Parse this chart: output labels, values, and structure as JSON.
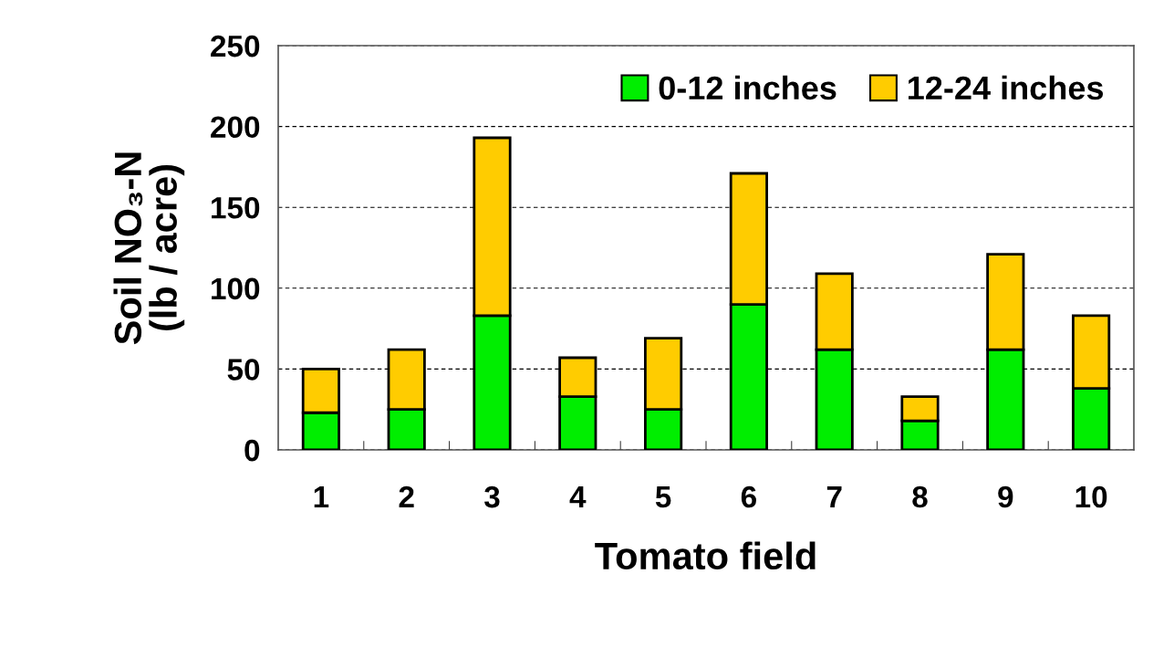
{
  "chart_data": {
    "type": "bar",
    "stacked": true,
    "xlabel": "Tomato field",
    "ylabel": "Soil NO₃-N\n(lb / acre)",
    "categories": [
      "1",
      "2",
      "3",
      "4",
      "5",
      "6",
      "7",
      "8",
      "9",
      "10"
    ],
    "series": [
      {
        "name": "0-12 inches",
        "color": "#00ee00",
        "values": [
          23,
          25,
          83,
          33,
          25,
          90,
          62,
          18,
          62,
          38
        ]
      },
      {
        "name": "12-24 inches",
        "color": "#ffcc00",
        "values": [
          27,
          37,
          110,
          24,
          44,
          81,
          47,
          15,
          59,
          45
        ]
      }
    ],
    "ylim": [
      0,
      250
    ],
    "yticks": [
      0,
      50,
      100,
      150,
      200,
      250
    ],
    "grid": "y",
    "legend": "top right"
  }
}
